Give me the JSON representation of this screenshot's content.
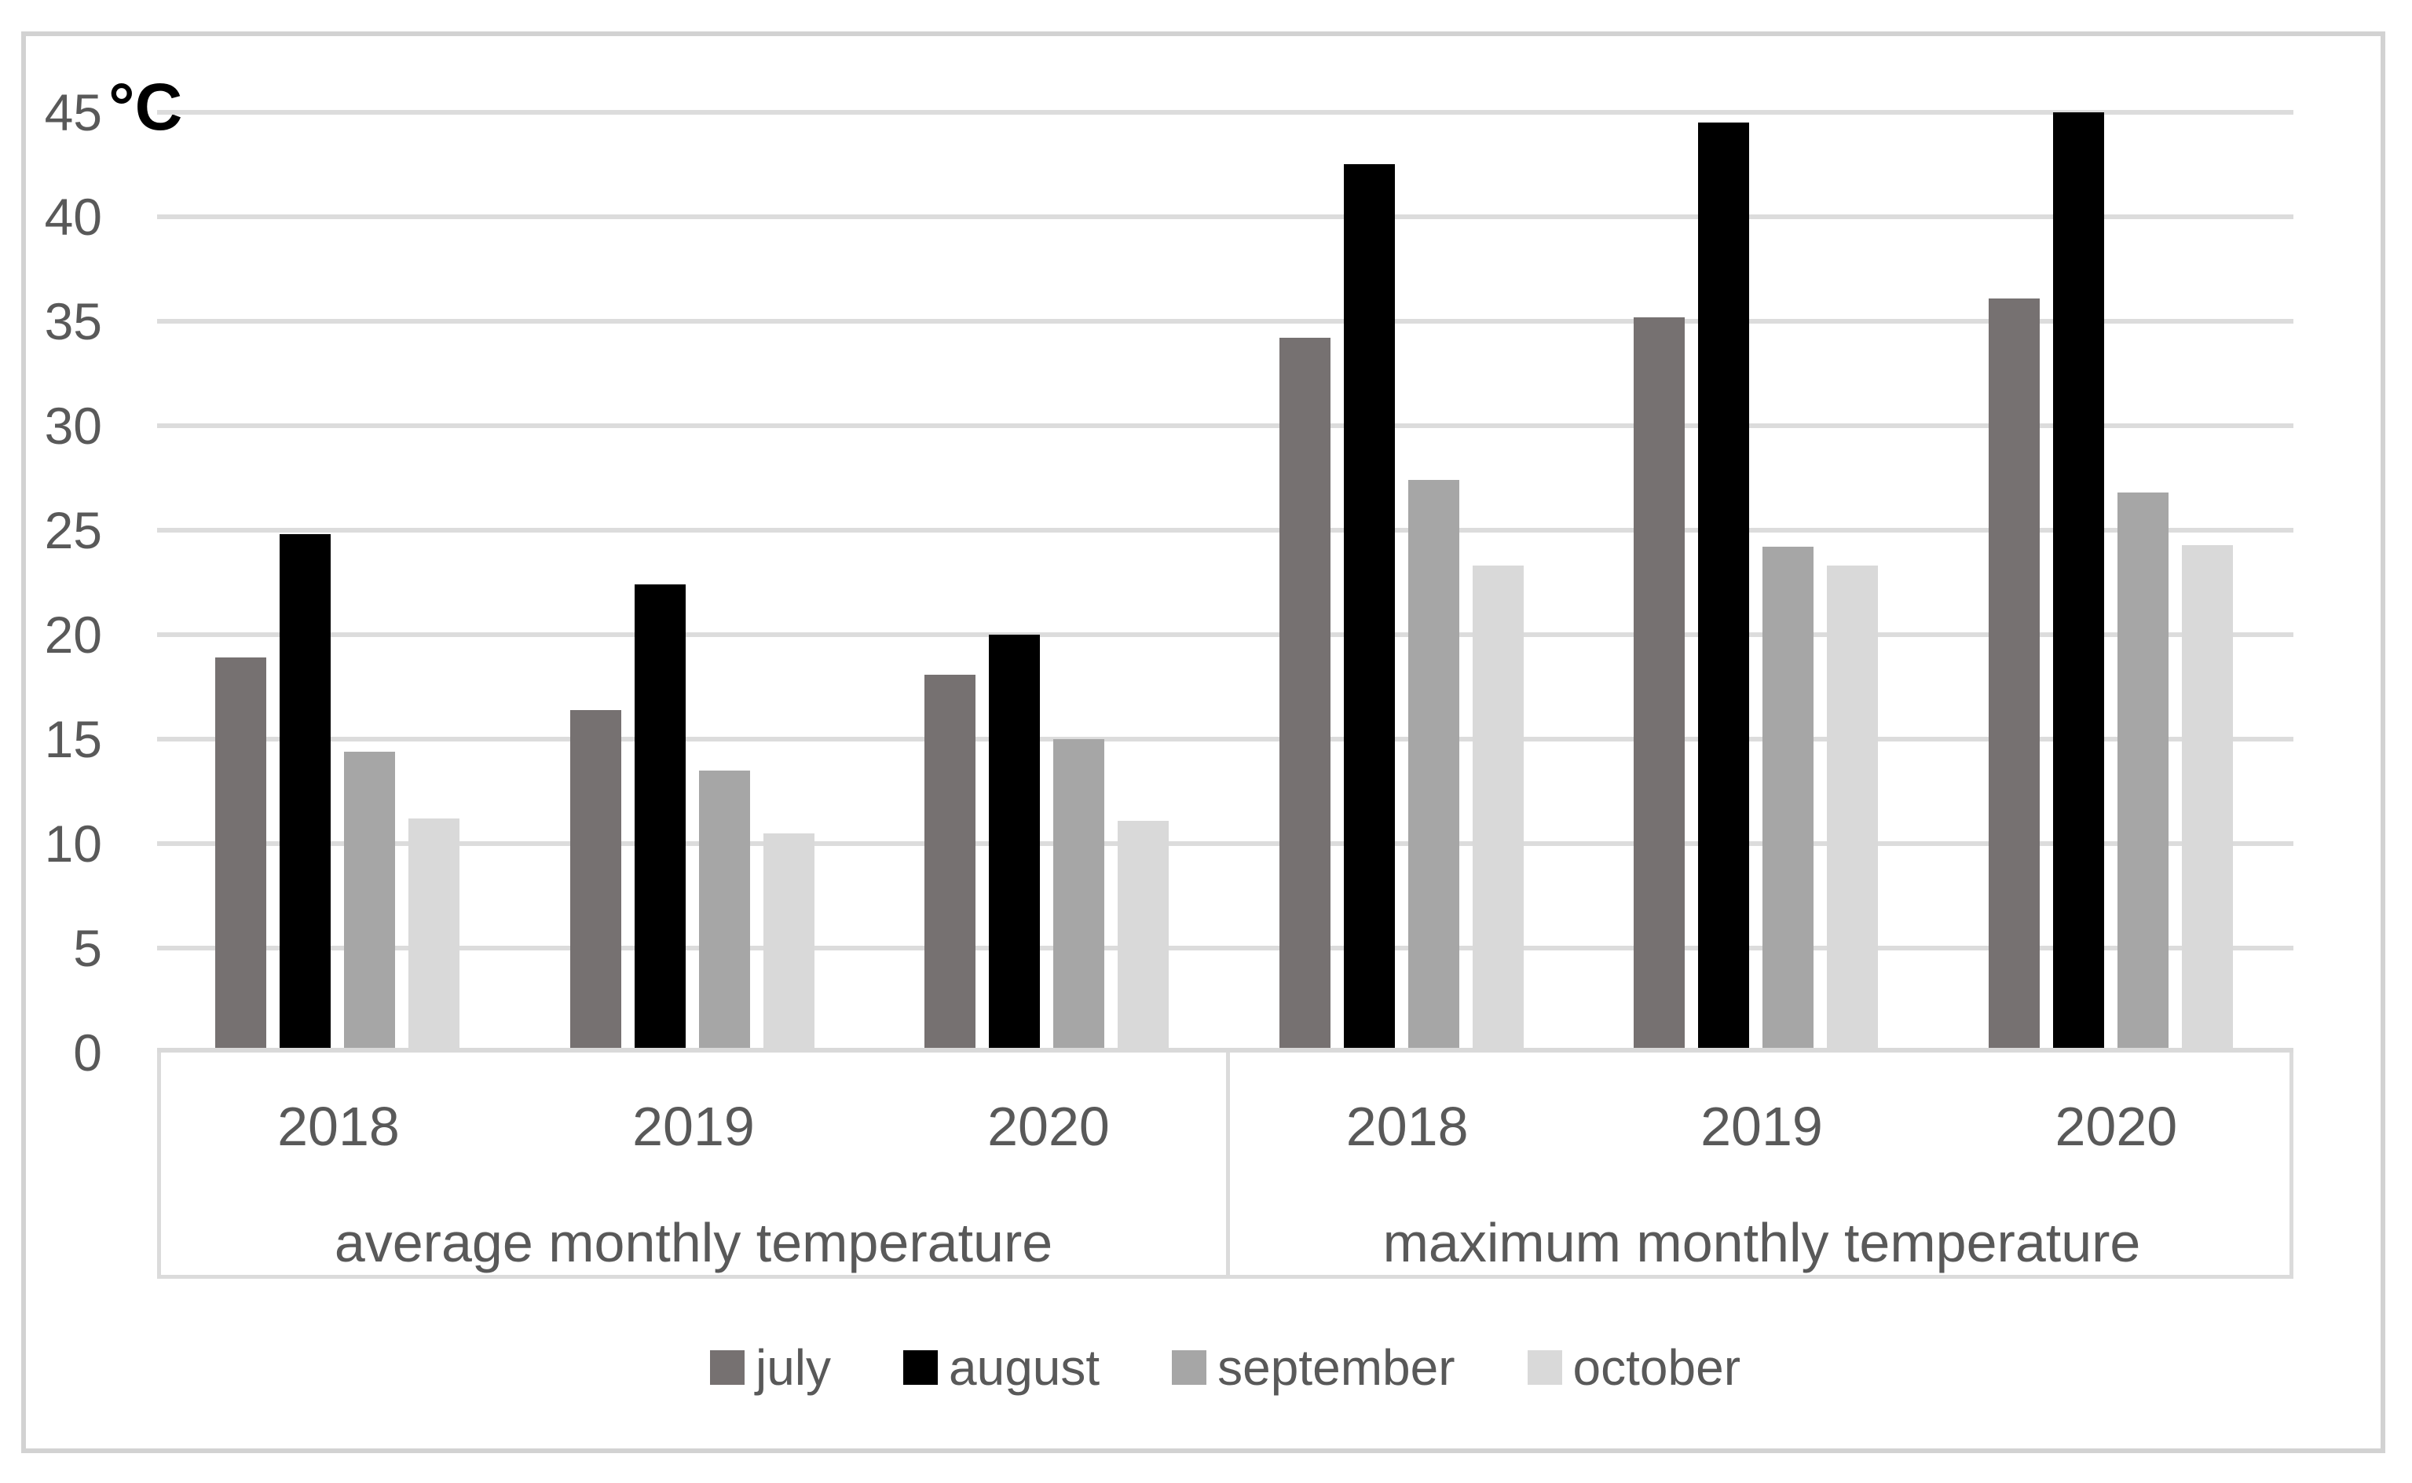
{
  "axis": {
    "unit_label": "°C"
  },
  "chart_data": {
    "type": "bar",
    "title": "",
    "y_axis": {
      "unit": "°C",
      "min": 0,
      "max": 45,
      "step": 5,
      "tick_labels": [
        "0",
        "5",
        "10",
        "15",
        "20",
        "25",
        "30",
        "35",
        "40",
        "45"
      ]
    },
    "grid": true,
    "legend_position": "bottom-center",
    "series": [
      {
        "name": "july",
        "color": "#767171"
      },
      {
        "name": "august",
        "color": "#000000"
      },
      {
        "name": "september",
        "color": "#A6A6A6"
      },
      {
        "name": "october",
        "color": "#D9D9D9"
      }
    ],
    "sections": [
      {
        "label": "average monthly temperature",
        "groups": [
          {
            "year": "2018",
            "values": [
              18.9,
              24.8,
              14.4,
              11.2
            ]
          },
          {
            "year": "2019",
            "values": [
              16.4,
              22.4,
              13.5,
              10.5
            ]
          },
          {
            "year": "2020",
            "values": [
              18.1,
              20,
              15,
              11.1
            ]
          }
        ]
      },
      {
        "label": "maximum monthly temperature",
        "groups": [
          {
            "year": "2018",
            "values": [
              34.2,
              42.5,
              27.4,
              23.3
            ]
          },
          {
            "year": "2019",
            "values": [
              35.2,
              44.5,
              24.2,
              23.3
            ]
          },
          {
            "year": "2020",
            "values": [
              36.1,
              45,
              26.8,
              24.3
            ]
          }
        ]
      }
    ]
  }
}
